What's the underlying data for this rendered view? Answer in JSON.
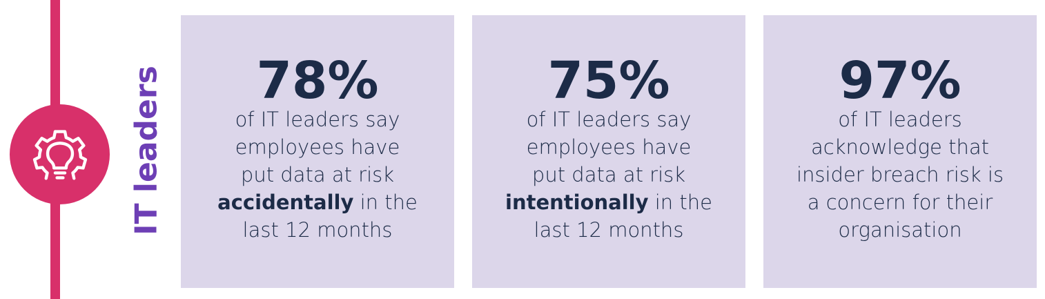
{
  "section": {
    "label": "IT leaders",
    "icon": "lightbulb-gear-icon",
    "accent_color": "#d8306a",
    "label_color": "#6d3fb5",
    "card_color": "#dcd6ea",
    "text_color": "#1c2b47"
  },
  "cards": [
    {
      "stat": "78%",
      "lines": [
        [
          "of IT leaders say"
        ],
        [
          "employees have"
        ],
        [
          "put data at risk"
        ],
        [
          "accidentally",
          " in the"
        ],
        [
          "last 12 months"
        ]
      ]
    },
    {
      "stat": "75%",
      "lines": [
        [
          "of IT leaders say"
        ],
        [
          "employees have"
        ],
        [
          "put data at risk"
        ],
        [
          "intentionally",
          " in the"
        ],
        [
          "last 12 months"
        ]
      ]
    },
    {
      "stat": "97%",
      "lines": [
        [
          "of IT leaders"
        ],
        [
          "acknowledge that"
        ],
        [
          "insider breach risk is"
        ],
        [
          "a concern for their"
        ],
        [
          "organisation"
        ]
      ]
    }
  ]
}
